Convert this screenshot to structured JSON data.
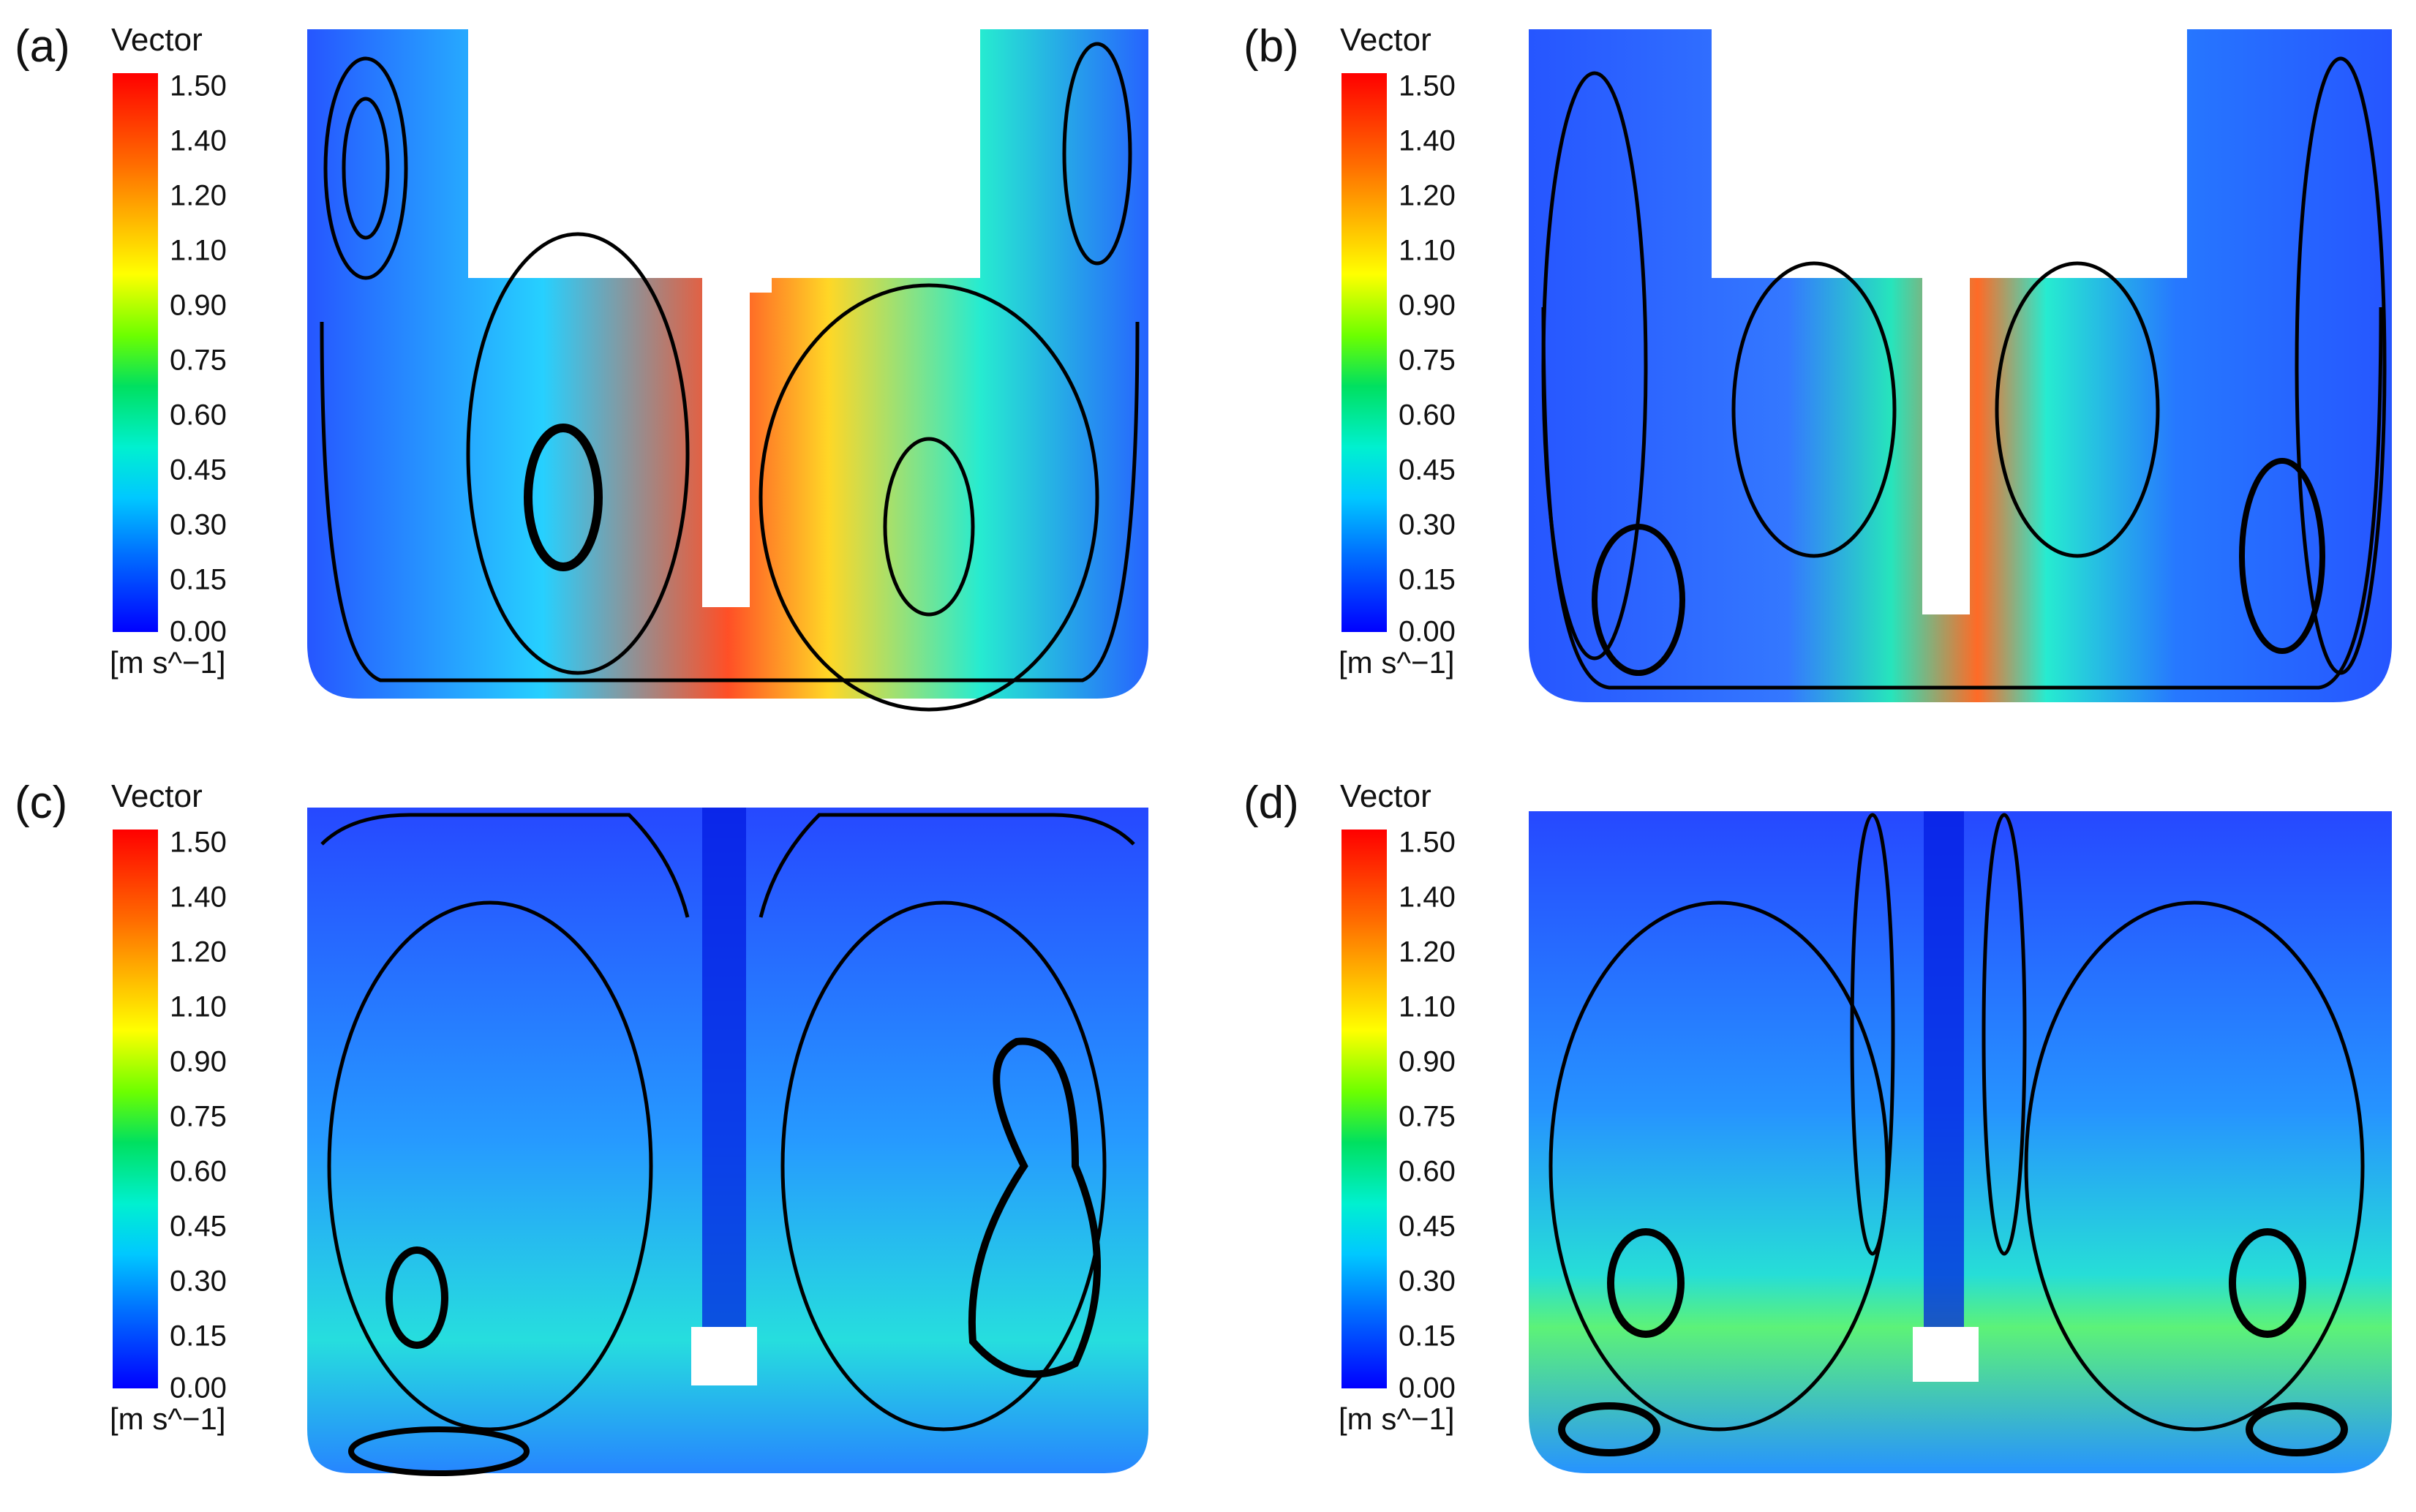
{
  "legend": {
    "title": "Vector",
    "ticks": [
      "1.50",
      "1.40",
      "1.20",
      "1.10",
      "0.90",
      "0.75",
      "0.60",
      "0.45",
      "0.30",
      "0.15",
      "0.00"
    ],
    "unit": "[m s^−1]"
  },
  "panels": [
    {
      "id": "a",
      "label": "(a)"
    },
    {
      "id": "b",
      "label": "(b)"
    },
    {
      "id": "c",
      "label": "(c)"
    },
    {
      "id": "d",
      "label": "(d)"
    }
  ],
  "colors": {
    "scale_max": "#ff0000",
    "scale_mid": "#00f0d0",
    "scale_min": "#0000ff",
    "streamline": "#000000"
  }
}
